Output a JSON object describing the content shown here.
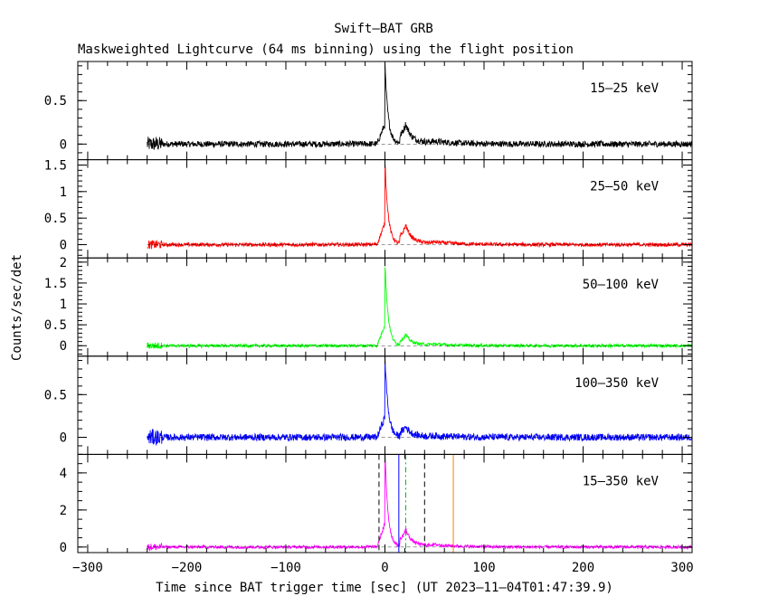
{
  "chart_data": {
    "type": "line",
    "title": "Swift–BAT GRB",
    "subtitle": "Maskweighted Lightcurve (64 ms binning) using the flight position",
    "xlabel": "Time since BAT trigger time [sec] (UT 2023–11–04T01:47:39.9)",
    "ylabel": "Counts/sec/det",
    "xlim": [
      -310,
      310
    ],
    "xticks": [
      -300,
      -200,
      -100,
      0,
      100,
      200,
      300
    ],
    "xtick_labels": [
      "−300",
      "−200",
      "−100",
      "0",
      "100",
      "200",
      "300"
    ],
    "data_start": -240,
    "panels": [
      {
        "band": "15–25 keV",
        "color": "#000000",
        "ylim": [
          -0.18,
          0.95
        ],
        "yticks": [
          0,
          0.5
        ],
        "ytick_labels": [
          "0",
          "0.5"
        ],
        "peak": 0.9,
        "noise": 0.035,
        "second_peak": 0.22
      },
      {
        "band": "25–50 keV",
        "color": "#ff0000",
        "ylim": [
          -0.25,
          1.6
        ],
        "yticks": [
          0,
          0.5,
          1,
          1.5
        ],
        "ytick_labels": [
          "0",
          "0.5",
          "1",
          "1.5"
        ],
        "peak": 1.6,
        "noise": 0.035,
        "second_peak": 0.35
      },
      {
        "band": "50–100 keV",
        "color": "#00ff00",
        "ylim": [
          -0.25,
          2.1
        ],
        "yticks": [
          0,
          0.5,
          1,
          1.5,
          2
        ],
        "ytick_labels": [
          "0",
          "0.5",
          "1",
          "1.5",
          "2"
        ],
        "peak": 2.0,
        "noise": 0.035,
        "second_peak": 0.25
      },
      {
        "band": "100–350 keV",
        "color": "#0000ff",
        "ylim": [
          -0.2,
          0.95
        ],
        "yticks": [
          0,
          0.5
        ],
        "ytick_labels": [
          "0",
          "0.5"
        ],
        "peak": 0.95,
        "noise": 0.04,
        "second_peak": 0.12
      },
      {
        "band": "15–350 keV",
        "color": "#ff00ff",
        "ylim": [
          -0.3,
          5.0
        ],
        "yticks": [
          0,
          2,
          4
        ],
        "ytick_labels": [
          "0",
          "2",
          "4"
        ],
        "peak": 5.0,
        "noise": 0.08,
        "second_peak": 0.9,
        "markers": [
          {
            "x": -6,
            "color": "#000000",
            "style": "dashed"
          },
          {
            "x": 14,
            "color": "#0000ff",
            "style": "solid"
          },
          {
            "x": 21,
            "color": "#00c000",
            "style": "dashdot"
          },
          {
            "x": 40,
            "color": "#000000",
            "style": "dashed"
          },
          {
            "x": 69,
            "color": "#ff8000",
            "style": "solid"
          }
        ]
      }
    ],
    "grid": false
  }
}
